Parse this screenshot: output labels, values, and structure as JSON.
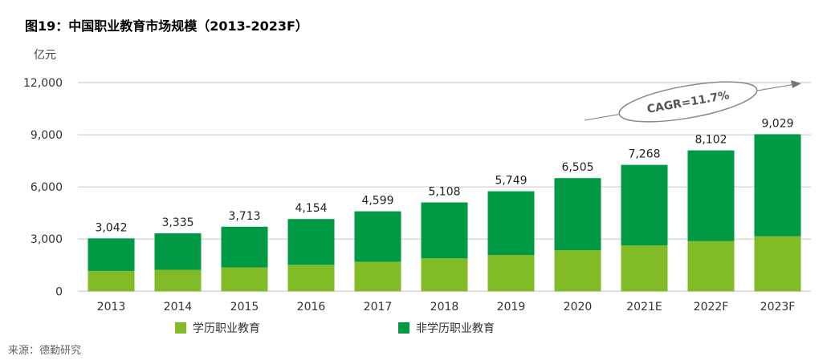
{
  "chart_data": {
    "type": "bar",
    "stacked": true,
    "title": "图19：中国职业教育市场规模（2013-2023F）",
    "ylabel": "亿元",
    "ylim": [
      0,
      12000
    ],
    "yticks": [
      0,
      3000,
      6000,
      9000,
      12000
    ],
    "ytick_labels": [
      "0",
      "3,000",
      "6,000",
      "9,000",
      "12,000"
    ],
    "grid": true,
    "legend_position": "bottom",
    "categories": [
      "2013",
      "2014",
      "2015",
      "2016",
      "2017",
      "2018",
      "2019",
      "2020",
      "2021E",
      "2022F",
      "2023F"
    ],
    "totals": [
      3042,
      3335,
      3713,
      4154,
      4599,
      5108,
      5749,
      6505,
      7268,
      8102,
      9029
    ],
    "total_labels": [
      "3,042",
      "3,335",
      "3,713",
      "4,154",
      "4,599",
      "5,108",
      "5,749",
      "6,505",
      "7,268",
      "8,102",
      "9,029"
    ],
    "series": [
      {
        "name": "学历职业教育",
        "color": "#81BC26",
        "values": [
          1170,
          1230,
          1370,
          1520,
          1700,
          1890,
          2080,
          2360,
          2640,
          2880,
          3160
        ]
      },
      {
        "name": "非学历职业教育",
        "color": "#009A44",
        "values": [
          1872,
          2105,
          2343,
          2634,
          2899,
          3218,
          3669,
          4145,
          4628,
          5222,
          5869
        ]
      }
    ],
    "annotation": "CAGR=11.7%",
    "source": "来源：德勤研究"
  }
}
